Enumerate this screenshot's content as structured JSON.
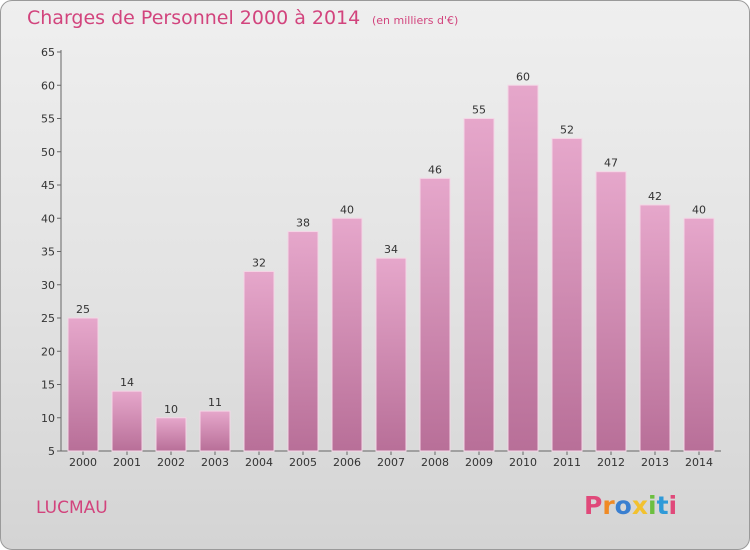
{
  "header": {
    "title": "Charges de Personnel 2000 à 2014",
    "subtitle": "(en milliers d'€)"
  },
  "footer": {
    "commune": "LUCMAU",
    "logo": "Proxiti"
  },
  "colors": {
    "title": "#d2447d",
    "bar_top": "#e6a7cb",
    "bar_bottom": "#b86f98",
    "logo_letters": [
      "#e0497a",
      "#f08a24",
      "#3a7fd0",
      "#f2c12e",
      "#6cbf3f",
      "#2f9ad8",
      "#e0497a"
    ]
  },
  "chart_data": {
    "type": "bar",
    "categories": [
      "2000",
      "2001",
      "2002",
      "2003",
      "2004",
      "2005",
      "2006",
      "2007",
      "2008",
      "2009",
      "2010",
      "2011",
      "2012",
      "2013",
      "2014"
    ],
    "values": [
      25,
      14,
      10,
      11,
      32,
      38,
      40,
      34,
      46,
      55,
      60,
      52,
      47,
      42,
      40
    ],
    "data_labels": [
      "25",
      "14",
      "10",
      "11",
      "32",
      "38",
      "40",
      "34",
      "46",
      "55",
      "60",
      "52",
      "47",
      "42",
      "40"
    ],
    "title": "Charges de Personnel 2000 à 2014",
    "ylim": [
      5,
      65
    ],
    "yticks": [
      5,
      10,
      15,
      20,
      25,
      30,
      35,
      40,
      45,
      50,
      55,
      60,
      65
    ],
    "grid": false
  }
}
